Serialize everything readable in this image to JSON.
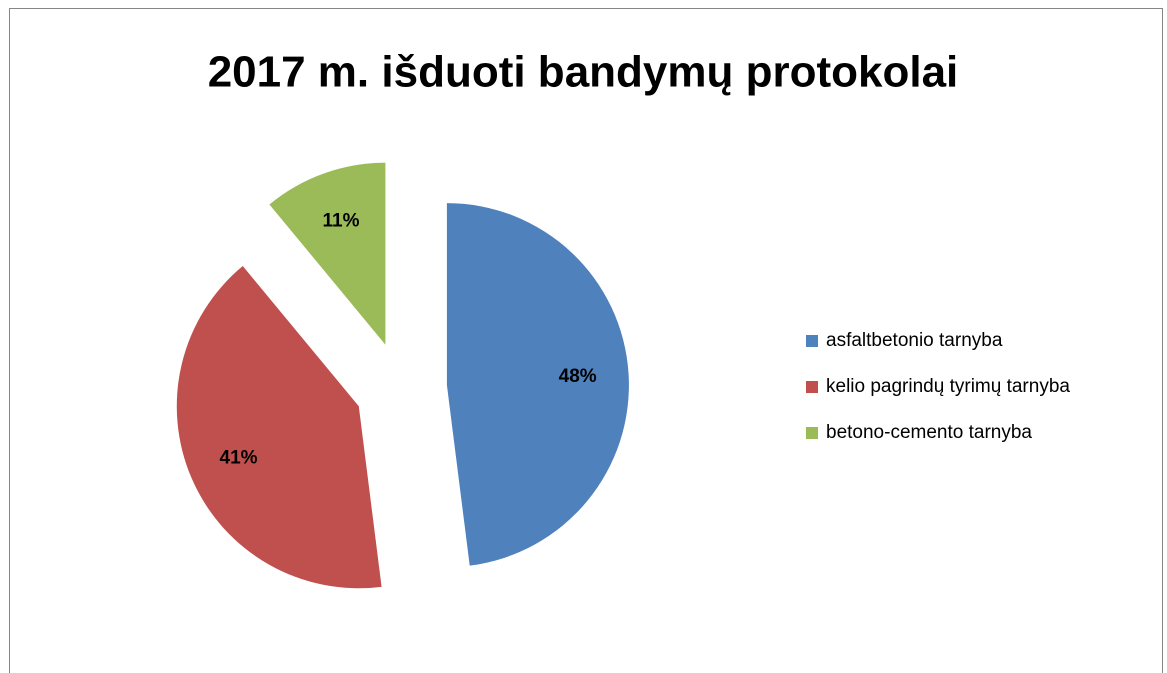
{
  "chart_data": {
    "type": "pie",
    "title": "2017 m. išduoti bandymų protokolai",
    "categories": [
      "asfaltbetonio tarnyba",
      "kelio pagrindų tyrimų tarnyba",
      "betono-cemento tarnyba"
    ],
    "values": [
      48,
      41,
      11
    ],
    "value_labels": [
      "48%",
      "41%",
      "11%"
    ],
    "colors": [
      "#4f81bd",
      "#c0504d",
      "#9bbb59"
    ],
    "exploded": true,
    "legend": "right"
  }
}
